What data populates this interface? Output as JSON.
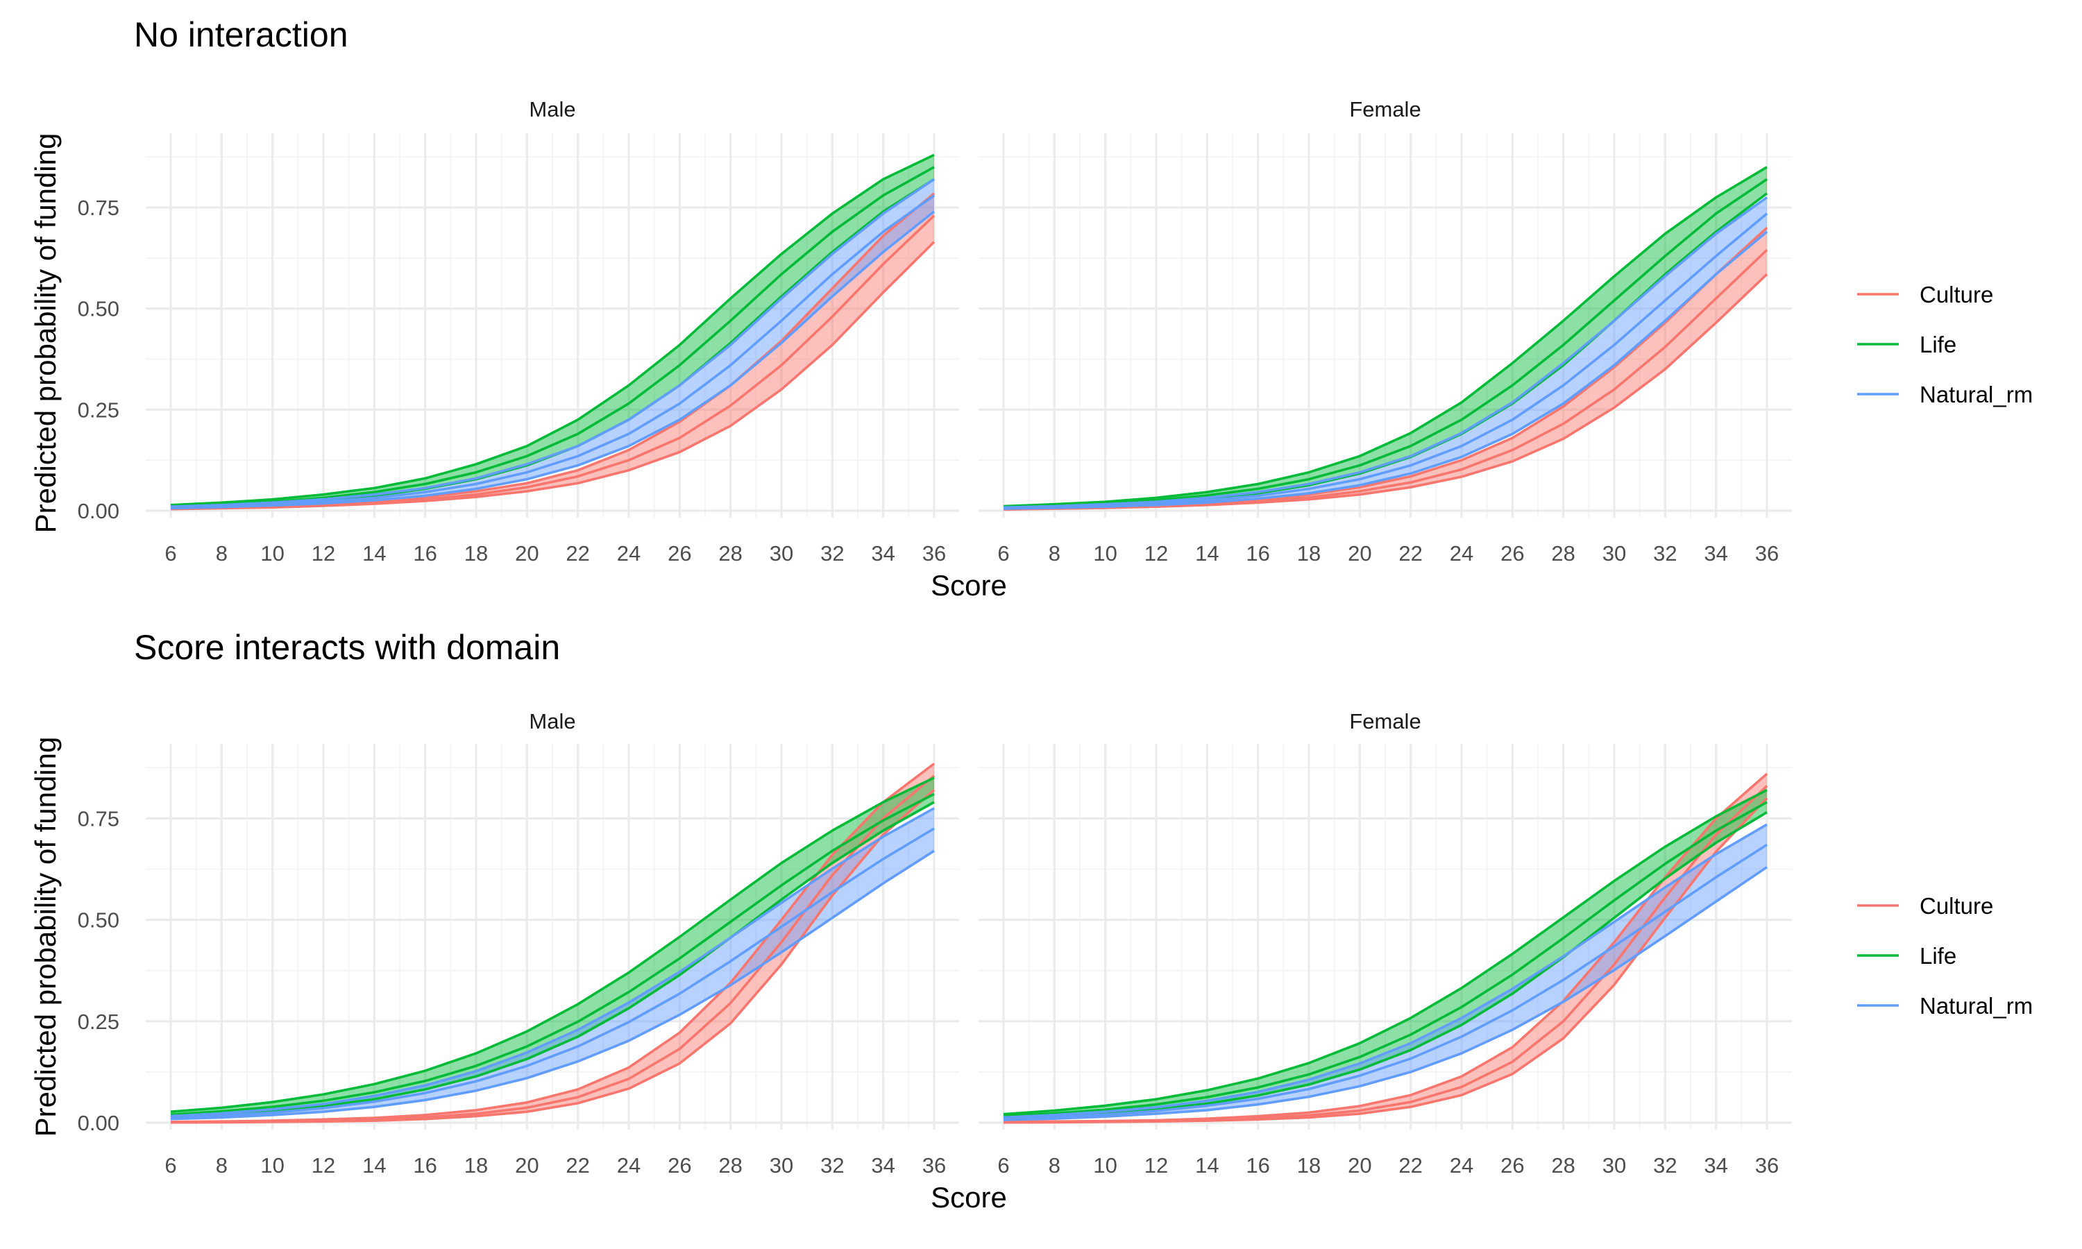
{
  "chart_data": [
    {
      "type": "area",
      "title": "No interaction",
      "xlabel": "Score",
      "ylabel": "Predicted probability of funding",
      "xlim": [
        6,
        36
      ],
      "ylim": [
        0,
        0.92
      ],
      "x_ticks": [
        "6",
        "8",
        "10",
        "12",
        "14",
        "16",
        "18",
        "20",
        "22",
        "24",
        "26",
        "28",
        "30",
        "32",
        "34",
        "36"
      ],
      "y_ticks": [
        "0.00",
        "0.25",
        "0.50",
        "0.75"
      ],
      "grid": true,
      "legend_position": "right",
      "legend": [
        "Culture",
        "Life",
        "Natural_rm"
      ],
      "x": [
        6,
        8,
        10,
        12,
        14,
        16,
        18,
        20,
        22,
        24,
        26,
        28,
        30,
        32,
        34,
        36
      ],
      "panels": [
        {
          "name": "Male",
          "series": [
            {
              "name": "Culture",
              "fit": [
                0.005,
                0.007,
                0.01,
                0.014,
                0.02,
                0.028,
                0.04,
                0.058,
                0.085,
                0.125,
                0.18,
                0.26,
                0.36,
                0.48,
                0.61,
                0.73
              ],
              "lower": [
                0.004,
                0.006,
                0.008,
                0.012,
                0.017,
                0.024,
                0.034,
                0.048,
                0.068,
                0.1,
                0.145,
                0.21,
                0.3,
                0.41,
                0.54,
                0.665
              ],
              "upper": [
                0.007,
                0.009,
                0.013,
                0.018,
                0.025,
                0.034,
                0.048,
                0.068,
                0.1,
                0.15,
                0.22,
                0.31,
                0.42,
                0.55,
                0.68,
                0.785
              ]
            },
            {
              "name": "Life",
              "fit": [
                0.011,
                0.016,
                0.022,
                0.032,
                0.046,
                0.066,
                0.095,
                0.135,
                0.19,
                0.265,
                0.36,
                0.47,
                0.585,
                0.69,
                0.78,
                0.85
              ],
              "lower": [
                0.008,
                0.012,
                0.017,
                0.025,
                0.037,
                0.054,
                0.078,
                0.112,
                0.16,
                0.225,
                0.31,
                0.415,
                0.53,
                0.64,
                0.74,
                0.82
              ],
              "upper": [
                0.014,
                0.02,
                0.028,
                0.04,
                0.056,
                0.08,
                0.115,
                0.16,
                0.225,
                0.31,
                0.41,
                0.525,
                0.635,
                0.735,
                0.82,
                0.88
              ]
            },
            {
              "name": "Natural_rm",
              "fit": [
                0.008,
                0.011,
                0.016,
                0.022,
                0.032,
                0.046,
                0.066,
                0.095,
                0.135,
                0.19,
                0.265,
                0.36,
                0.47,
                0.585,
                0.69,
                0.78
              ],
              "lower": [
                0.006,
                0.009,
                0.013,
                0.018,
                0.026,
                0.037,
                0.054,
                0.078,
                0.112,
                0.16,
                0.225,
                0.31,
                0.415,
                0.53,
                0.64,
                0.74
              ],
              "upper": [
                0.01,
                0.014,
                0.02,
                0.028,
                0.04,
                0.056,
                0.08,
                0.115,
                0.16,
                0.225,
                0.31,
                0.41,
                0.525,
                0.635,
                0.735,
                0.82
              ]
            }
          ]
        },
        {
          "name": "Female",
          "series": [
            {
              "name": "Culture",
              "fit": [
                0.004,
                0.006,
                0.008,
                0.011,
                0.016,
                0.023,
                0.033,
                0.048,
                0.07,
                0.102,
                0.15,
                0.215,
                0.3,
                0.405,
                0.525,
                0.645
              ],
              "lower": [
                0.003,
                0.005,
                0.007,
                0.01,
                0.014,
                0.02,
                0.028,
                0.04,
                0.058,
                0.084,
                0.122,
                0.178,
                0.255,
                0.35,
                0.465,
                0.585
              ],
              "upper": [
                0.006,
                0.008,
                0.01,
                0.014,
                0.02,
                0.028,
                0.04,
                0.058,
                0.085,
                0.125,
                0.18,
                0.258,
                0.355,
                0.465,
                0.585,
                0.7
              ]
            },
            {
              "name": "Life",
              "fit": [
                0.009,
                0.013,
                0.018,
                0.026,
                0.038,
                0.054,
                0.078,
                0.112,
                0.16,
                0.225,
                0.31,
                0.41,
                0.52,
                0.63,
                0.735,
                0.82
              ],
              "lower": [
                0.007,
                0.01,
                0.014,
                0.02,
                0.03,
                0.043,
                0.063,
                0.092,
                0.133,
                0.19,
                0.265,
                0.36,
                0.47,
                0.585,
                0.69,
                0.785
              ],
              "upper": [
                0.011,
                0.016,
                0.022,
                0.032,
                0.046,
                0.066,
                0.095,
                0.135,
                0.192,
                0.268,
                0.365,
                0.47,
                0.58,
                0.685,
                0.775,
                0.85
              ]
            },
            {
              "name": "Natural_rm",
              "fit": [
                0.006,
                0.009,
                0.013,
                0.018,
                0.026,
                0.037,
                0.054,
                0.078,
                0.112,
                0.16,
                0.225,
                0.31,
                0.41,
                0.52,
                0.63,
                0.735
              ],
              "lower": [
                0.005,
                0.007,
                0.01,
                0.014,
                0.02,
                0.03,
                0.043,
                0.063,
                0.092,
                0.133,
                0.19,
                0.265,
                0.36,
                0.47,
                0.585,
                0.69
              ],
              "upper": [
                0.008,
                0.011,
                0.016,
                0.022,
                0.032,
                0.046,
                0.066,
                0.095,
                0.135,
                0.192,
                0.268,
                0.365,
                0.47,
                0.58,
                0.685,
                0.775
              ]
            }
          ]
        }
      ]
    },
    {
      "type": "area",
      "title": "Score interacts with domain",
      "xlabel": "Score",
      "ylabel": "Predicted probability of funding",
      "xlim": [
        6,
        36
      ],
      "ylim": [
        0,
        0.92
      ],
      "x_ticks": [
        "6",
        "8",
        "10",
        "12",
        "14",
        "16",
        "18",
        "20",
        "22",
        "24",
        "26",
        "28",
        "30",
        "32",
        "34",
        "36"
      ],
      "y_ticks": [
        "0.00",
        "0.25",
        "0.50",
        "0.75"
      ],
      "grid": true,
      "legend_position": "right",
      "legend": [
        "Culture",
        "Life",
        "Natural_rm"
      ],
      "x": [
        6,
        8,
        10,
        12,
        14,
        16,
        18,
        20,
        22,
        24,
        26,
        28,
        30,
        32,
        34,
        36
      ],
      "panels": [
        {
          "name": "Male",
          "series": [
            {
              "name": "Culture",
              "fit": [
                0.001,
                0.002,
                0.003,
                0.005,
                0.008,
                0.013,
                0.022,
                0.037,
                0.063,
                0.108,
                0.182,
                0.295,
                0.445,
                0.61,
                0.75,
                0.855
              ],
              "lower": [
                0.0005,
                0.001,
                0.002,
                0.003,
                0.005,
                0.009,
                0.016,
                0.027,
                0.048,
                0.084,
                0.146,
                0.245,
                0.39,
                0.56,
                0.71,
                0.82
              ],
              "upper": [
                0.002,
                0.003,
                0.005,
                0.008,
                0.012,
                0.019,
                0.031,
                0.05,
                0.082,
                0.136,
                0.222,
                0.345,
                0.5,
                0.66,
                0.79,
                0.885
              ]
            },
            {
              "name": "Life",
              "fit": [
                0.02,
                0.028,
                0.039,
                0.054,
                0.075,
                0.103,
                0.14,
                0.188,
                0.249,
                0.322,
                0.405,
                0.495,
                0.585,
                0.67,
                0.745,
                0.81
              ],
              "lower": [
                0.014,
                0.02,
                0.029,
                0.041,
                0.058,
                0.082,
                0.114,
                0.157,
                0.212,
                0.282,
                0.364,
                0.456,
                0.55,
                0.64,
                0.72,
                0.79
              ],
              "upper": [
                0.027,
                0.037,
                0.051,
                0.07,
                0.095,
                0.128,
                0.171,
                0.225,
                0.292,
                0.37,
                0.458,
                0.55,
                0.64,
                0.72,
                0.79,
                0.85
              ]
            },
            {
              "name": "Natural_rm",
              "fit": [
                0.012,
                0.018,
                0.025,
                0.036,
                0.052,
                0.073,
                0.102,
                0.14,
                0.188,
                0.248,
                0.318,
                0.398,
                0.483,
                0.568,
                0.65,
                0.725
              ],
              "lower": [
                0.009,
                0.013,
                0.019,
                0.027,
                0.039,
                0.056,
                0.079,
                0.11,
                0.151,
                0.202,
                0.266,
                0.339,
                0.42,
                0.505,
                0.59,
                0.67
              ],
              "upper": [
                0.016,
                0.023,
                0.033,
                0.046,
                0.066,
                0.092,
                0.127,
                0.173,
                0.229,
                0.296,
                0.372,
                0.456,
                0.542,
                0.626,
                0.705,
                0.775
              ]
            }
          ]
        },
        {
          "name": "Female",
          "series": [
            {
              "name": "Culture",
              "fit": [
                0.001,
                0.002,
                0.003,
                0.004,
                0.007,
                0.011,
                0.018,
                0.03,
                0.051,
                0.088,
                0.15,
                0.25,
                0.39,
                0.555,
                0.71,
                0.83
              ],
              "lower": [
                0.0005,
                0.001,
                0.002,
                0.003,
                0.005,
                0.008,
                0.013,
                0.022,
                0.039,
                0.068,
                0.12,
                0.208,
                0.34,
                0.505,
                0.668,
                0.8
              ],
              "upper": [
                0.002,
                0.003,
                0.004,
                0.006,
                0.01,
                0.016,
                0.025,
                0.041,
                0.068,
                0.114,
                0.186,
                0.3,
                0.445,
                0.605,
                0.75,
                0.86
              ]
            },
            {
              "name": "Life",
              "fit": [
                0.016,
                0.023,
                0.032,
                0.045,
                0.063,
                0.087,
                0.119,
                0.162,
                0.217,
                0.285,
                0.365,
                0.455,
                0.548,
                0.638,
                0.72,
                0.79
              ],
              "lower": [
                0.011,
                0.016,
                0.023,
                0.033,
                0.047,
                0.067,
                0.094,
                0.131,
                0.179,
                0.241,
                0.318,
                0.408,
                0.505,
                0.602,
                0.69,
                0.765
              ],
              "upper": [
                0.021,
                0.03,
                0.042,
                0.058,
                0.08,
                0.109,
                0.147,
                0.196,
                0.258,
                0.332,
                0.416,
                0.506,
                0.596,
                0.68,
                0.755,
                0.82
              ]
            },
            {
              "name": "Natural_rm",
              "fit": [
                0.01,
                0.014,
                0.02,
                0.029,
                0.042,
                0.059,
                0.083,
                0.116,
                0.158,
                0.212,
                0.277,
                0.352,
                0.435,
                0.52,
                0.605,
                0.685
              ],
              "lower": [
                0.007,
                0.01,
                0.015,
                0.022,
                0.031,
                0.045,
                0.064,
                0.09,
                0.125,
                0.171,
                0.229,
                0.298,
                0.376,
                0.46,
                0.545,
                0.63
              ],
              "upper": [
                0.013,
                0.019,
                0.027,
                0.038,
                0.054,
                0.076,
                0.106,
                0.146,
                0.196,
                0.258,
                0.33,
                0.41,
                0.495,
                0.58,
                0.662,
                0.735
              ]
            }
          ]
        }
      ]
    }
  ],
  "colors": {
    "Culture": "#F8766D",
    "Life": "#00BA38",
    "Natural_rm": "#619CFF"
  }
}
